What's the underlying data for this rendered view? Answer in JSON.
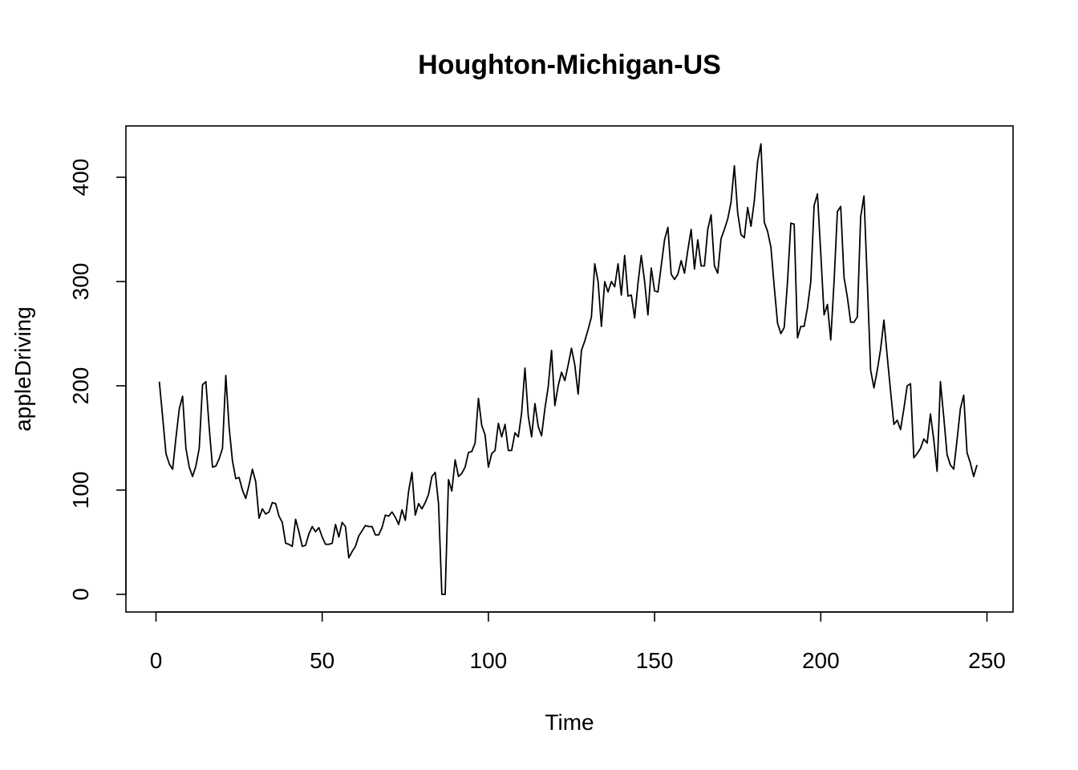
{
  "chart_data": {
    "type": "line",
    "title": "Houghton-Michigan-US",
    "xlabel": "Time",
    "ylabel": "appleDriving",
    "xlim": [
      1,
      248
    ],
    "ylim": [
      0,
      432
    ],
    "x_ticks": [
      0,
      50,
      100,
      150,
      200,
      250
    ],
    "y_ticks": [
      0,
      100,
      200,
      300,
      400
    ],
    "grid": false,
    "series": [
      {
        "color": "#000000",
        "x_start": 1,
        "x_step": 1,
        "values": [
          204,
          170,
          135,
          125,
          120,
          150,
          178,
          190,
          140,
          122,
          113,
          123,
          140,
          201,
          204,
          160,
          122,
          123,
          130,
          140,
          210,
          160,
          128,
          111,
          112,
          100,
          92,
          105,
          120,
          108,
          73,
          82,
          77,
          79,
          88,
          87,
          75,
          69,
          49,
          48,
          46,
          72,
          60,
          46,
          47,
          58,
          65,
          60,
          64,
          55,
          48,
          48,
          49,
          67,
          55,
          69,
          65,
          35,
          41,
          46,
          56,
          61,
          66,
          65,
          65,
          57,
          57,
          64,
          76,
          75,
          79,
          74,
          67,
          81,
          71,
          99,
          117,
          76,
          87,
          82,
          88,
          96,
          113,
          117,
          87,
          0,
          0,
          110,
          99,
          129,
          113,
          116,
          122,
          136,
          137,
          145,
          188,
          162,
          153,
          122,
          135,
          138,
          164,
          151,
          163,
          138,
          138,
          155,
          151,
          174,
          217,
          171,
          151,
          183,
          161,
          152,
          178,
          199,
          234,
          181,
          200,
          213,
          205,
          220,
          236,
          220,
          192,
          234,
          243,
          254,
          266,
          317,
          300,
          257,
          300,
          290,
          300,
          295,
          317,
          287,
          325,
          286,
          287,
          265,
          298,
          325,
          300,
          268,
          313,
          291,
          290,
          315,
          340,
          352,
          307,
          302,
          307,
          320,
          308,
          330,
          350,
          312,
          340,
          315,
          315,
          350,
          364,
          315,
          308,
          341,
          350,
          360,
          376,
          411,
          366,
          345,
          342,
          371,
          353,
          377,
          415,
          432,
          357,
          348,
          333,
          295,
          260,
          250,
          256,
          300,
          356,
          355,
          246,
          257,
          257,
          275,
          300,
          373,
          384,
          327,
          268,
          278,
          244,
          300,
          367,
          372,
          304,
          285,
          261,
          261,
          266,
          362,
          382,
          300,
          215,
          198,
          215,
          235,
          263,
          228,
          195,
          163,
          167,
          158,
          178,
          200,
          202,
          131,
          135,
          140,
          149,
          145,
          173,
          148,
          118,
          204,
          170,
          134,
          124,
          120,
          148,
          178,
          191,
          136,
          126,
          113,
          124
        ]
      }
    ]
  }
}
